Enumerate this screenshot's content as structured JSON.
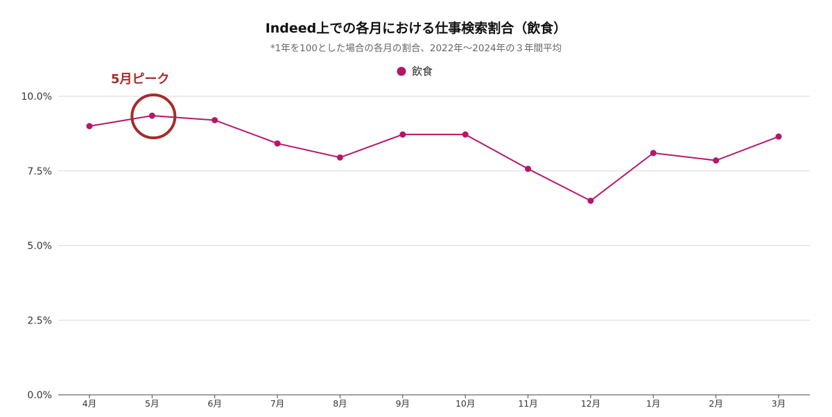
{
  "chart_data": {
    "type": "line",
    "title": "Indeed上での各月における仕事検索割合（飲食）",
    "subtitle": "*1年を100とした場合の各月の割合、2022年〜2024年の３年間平均",
    "categories": [
      "4月",
      "5月",
      "6月",
      "7月",
      "8月",
      "9月",
      "10月",
      "11月",
      "12月",
      "1月",
      "2月",
      "3月"
    ],
    "series": [
      {
        "name": "飲食",
        "color": "#b5166b",
        "values": [
          9.0,
          9.35,
          9.2,
          8.42,
          7.95,
          8.72,
          8.72,
          7.57,
          6.5,
          8.1,
          7.85,
          8.65
        ]
      }
    ],
    "ylim": [
      0,
      10
    ],
    "yticks": [
      0,
      2.5,
      5.0,
      7.5,
      10.0
    ],
    "ytick_labels": [
      "0.0%",
      "2.5%",
      "5.0%",
      "7.5%",
      "10.0%"
    ],
    "xlabel": "",
    "ylabel": "",
    "grid": true,
    "legend_position": "top-center",
    "annotation": {
      "text": "5月ピーク",
      "category": "5月",
      "color": "#a62a2a"
    }
  }
}
